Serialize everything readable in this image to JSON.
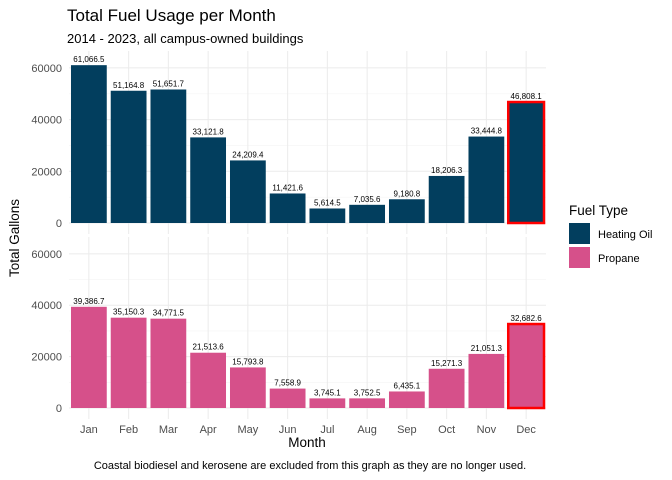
{
  "chart_data": {
    "type": "bar",
    "title": "Total Fuel Usage per Month",
    "subtitle": "2014 - 2023, all campus-owned buildings",
    "caption": "Coastal biodiesel and kerosene are excluded from this graph as they are no longer used.",
    "xlabel": "Month",
    "ylabel": "Total Gallons",
    "categories": [
      "Jan",
      "Feb",
      "Mar",
      "Apr",
      "May",
      "Jun",
      "Jul",
      "Aug",
      "Sep",
      "Oct",
      "Nov",
      "Dec"
    ],
    "ylim": [
      0,
      65000
    ],
    "yticks": [
      0,
      20000,
      40000,
      60000
    ],
    "ytick_labels": [
      "0",
      "20000",
      "40000",
      "60000"
    ],
    "legend": {
      "title": "Fuel Type",
      "position": "right"
    },
    "highlight": {
      "category": "Dec",
      "color": "#ff0000"
    },
    "grid": true,
    "series": [
      {
        "name": "Heating Oil",
        "color": "#023e5e",
        "values": [
          61066.5,
          51164.8,
          51651.7,
          33121.8,
          24209.4,
          11421.6,
          5614.5,
          7035.6,
          9180.8,
          18206.3,
          33444.8,
          46808.1
        ],
        "labels": [
          "61,066.5",
          "51,164.8",
          "51,651.7",
          "33,121.8",
          "24,209.4",
          "11,421.6",
          "5,614.5",
          "7,035.6",
          "9,180.8",
          "18,206.3",
          "33,444.8",
          "46,808.1"
        ]
      },
      {
        "name": "Propane",
        "color": "#d6508a",
        "values": [
          39386.7,
          35150.3,
          34771.5,
          21513.6,
          15793.8,
          7558.9,
          3745.1,
          3752.5,
          6435.1,
          15271.3,
          21051.3,
          32682.6
        ],
        "labels": [
          "39,386.7",
          "35,150.3",
          "34,771.5",
          "21,513.6",
          "15,793.8",
          "7,558.9",
          "3,745.1",
          "3,752.5",
          "6,435.1",
          "15,271.3",
          "21,051.3",
          "32,682.6"
        ]
      }
    ]
  }
}
